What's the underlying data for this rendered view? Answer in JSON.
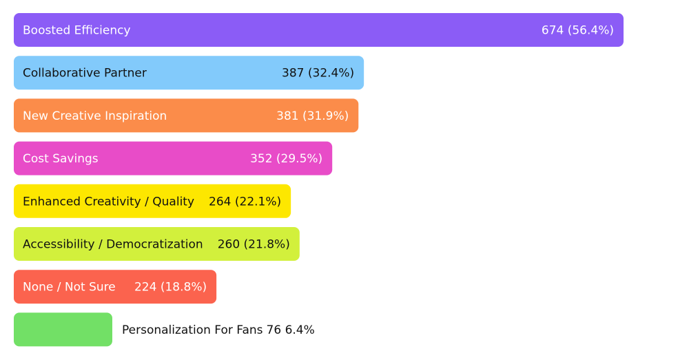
{
  "chart_data": {
    "type": "bar",
    "orientation": "horizontal",
    "categories": [
      "Boosted Efficiency",
      "Collaborative Partner",
      "New Creative Inspiration",
      "Cost Savings",
      "Enhanced Creativity / Quality",
      "Accessibility / Democratization",
      "None / Not Sure",
      "Personalization For Fans"
    ],
    "values": [
      674,
      387,
      381,
      352,
      264,
      260,
      224,
      76
    ],
    "value_labels": [
      "674 (56.4%)",
      "387 (32.4%)",
      "381 (31.9%)",
      "352 (29.5%)",
      "264 (22.1%)",
      "260 (21.8%)",
      "224 (18.8%)",
      "76 6.4%"
    ],
    "colors": [
      "#8b5cf6",
      "#82cafb",
      "#fb8c4a",
      "#e84cc8",
      "#fde700",
      "#d2f03c",
      "#fb634e",
      "#72e066"
    ]
  }
}
